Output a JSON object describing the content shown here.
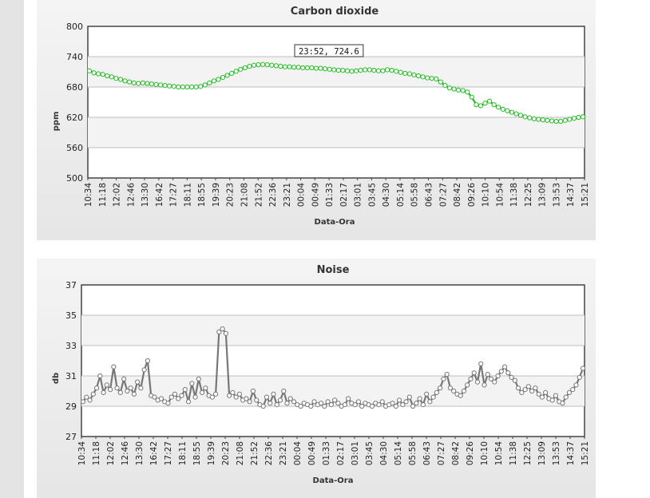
{
  "colors": {
    "co2_series": "#22bb22",
    "noise_series": "#777777",
    "plot_bg_light": "#ffffff",
    "plot_bg_band": "#f3f3f3"
  },
  "chart_data": [
    {
      "id": "co2",
      "type": "line",
      "title": "Carbon dioxide",
      "xlabel": "Data-Ora",
      "ylabel": "ppm",
      "ylim": [
        500,
        800
      ],
      "yticks": [
        "500",
        "560",
        "620",
        "680",
        "740",
        "800"
      ],
      "grid": true,
      "x_tick_labels": [
        "10:34",
        "11:18",
        "12:02",
        "12:46",
        "13:30",
        "16:42",
        "17:27",
        "18:11",
        "18:55",
        "19:39",
        "20:23",
        "21:08",
        "21:52",
        "22:36",
        "23:21",
        "00:04",
        "00:49",
        "01:33",
        "02:17",
        "03:01",
        "03:45",
        "04:30",
        "05:14",
        "05:58",
        "06:43",
        "07:27",
        "08:42",
        "09:26",
        "10:10",
        "10:54",
        "11:38",
        "12:25",
        "13:09",
        "13:53",
        "14:37",
        "15:21"
      ],
      "tooltip": "23:52, 724.6",
      "tooltip_index": 12,
      "series": [
        {
          "values": [
            712,
            708,
            706,
            705,
            702,
            700,
            697,
            695,
            692,
            690,
            688,
            687,
            688,
            687,
            686,
            685,
            684,
            683,
            682,
            681,
            680,
            680,
            680,
            680,
            680,
            681,
            684,
            688,
            692,
            695,
            699,
            703,
            707,
            711,
            715,
            718,
            721,
            723,
            724,
            724.6,
            724,
            723,
            722,
            721,
            720,
            720,
            719,
            719,
            718,
            718,
            718,
            717,
            717,
            716,
            715,
            714,
            713,
            713,
            712,
            711,
            712,
            713,
            714,
            714,
            713,
            712,
            712,
            714,
            713,
            711,
            709,
            707,
            706,
            704,
            702,
            700,
            698,
            697,
            696,
            690,
            683,
            678,
            676,
            674,
            673,
            670,
            660,
            645,
            643,
            648,
            652,
            645,
            640,
            636,
            633,
            630,
            627,
            624,
            621,
            619,
            617,
            616,
            615,
            614,
            613,
            612,
            612,
            614,
            616,
            618,
            620,
            621
          ]
        }
      ]
    },
    {
      "id": "noise",
      "type": "line",
      "title": "Noise",
      "xlabel": "Data-Ora",
      "ylabel": "db",
      "ylim": [
        27,
        37
      ],
      "yticks": [
        "27",
        "29",
        "31",
        "33",
        "35",
        "37"
      ],
      "grid": true,
      "x_tick_labels": [
        "10:34",
        "11:18",
        "12:02",
        "12:46",
        "13:30",
        "16:42",
        "17:27",
        "18:11",
        "18:55",
        "19:39",
        "20:23",
        "21:08",
        "21:52",
        "22:36",
        "23:21",
        "00:04",
        "00:49",
        "01:33",
        "02:17",
        "03:01",
        "03:45",
        "04:30",
        "05:14",
        "05:58",
        "06:43",
        "07:27",
        "08:42",
        "09:26",
        "10:10",
        "10:54",
        "11:38",
        "12:25",
        "13:09",
        "13:53",
        "14:37",
        "15:21"
      ],
      "series": [
        {
          "values": [
            29.3,
            29.6,
            29.4,
            29.8,
            30.2,
            31.0,
            29.9,
            30.4,
            30.1,
            31.6,
            30.2,
            29.9,
            30.8,
            30.0,
            30.2,
            29.8,
            30.6,
            30.2,
            31.4,
            32.0,
            29.7,
            29.6,
            29.4,
            29.5,
            29.3,
            29.2,
            29.6,
            29.8,
            29.5,
            29.7,
            30.1,
            29.3,
            30.5,
            29.6,
            30.8,
            29.9,
            30.2,
            29.7,
            29.6,
            29.8,
            33.9,
            34.1,
            33.8,
            29.7,
            29.9,
            29.6,
            29.8,
            29.4,
            29.5,
            29.3,
            30.0,
            29.4,
            29.1,
            29.0,
            29.6,
            29.2,
            29.8,
            29.1,
            29.4,
            30.0,
            29.2,
            29.5,
            29.3,
            29.1,
            29.0,
            29.2,
            29.1,
            29.0,
            29.3,
            29.1,
            29.2,
            29.0,
            29.3,
            29.1,
            29.4,
            29.2,
            29.0,
            29.1,
            29.5,
            29.2,
            29.1,
            29.3,
            29.0,
            29.2,
            29.1,
            29.0,
            29.2,
            29.1,
            29.3,
            29.0,
            29.1,
            29.2,
            29.0,
            29.4,
            29.1,
            29.3,
            29.6,
            29.0,
            29.2,
            29.5,
            29.1,
            29.8,
            29.3,
            29.6,
            29.9,
            30.2,
            30.8,
            31.1,
            30.2,
            30.0,
            29.8,
            29.7,
            30.0,
            30.4,
            30.8,
            31.2,
            30.6,
            31.8,
            30.4,
            31.1,
            30.8,
            30.6,
            31.0,
            31.3,
            31.6,
            31.2,
            30.9,
            30.7,
            30.2,
            29.9,
            30.1,
            30.3,
            30.0,
            30.2,
            29.8,
            29.6,
            29.9,
            29.5,
            29.4,
            29.7,
            29.3,
            29.2,
            29.6,
            29.9,
            30.1,
            30.4,
            30.9,
            31.5
          ]
        }
      ]
    }
  ]
}
